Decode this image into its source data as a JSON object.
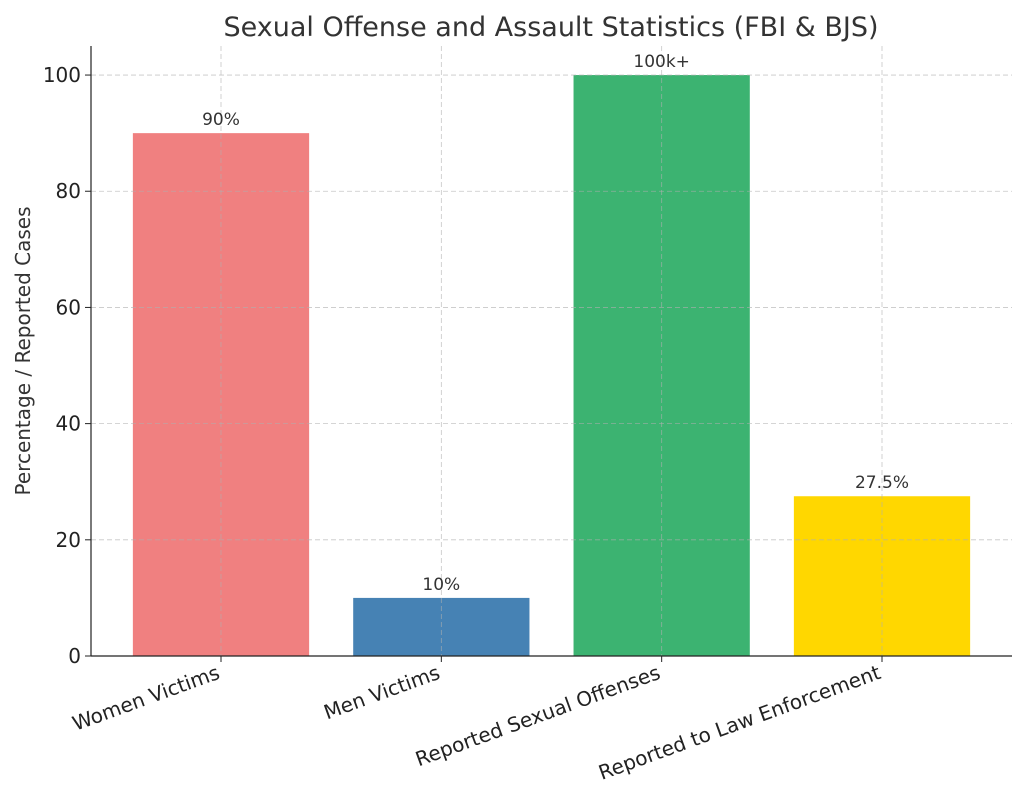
{
  "chart_data": {
    "type": "bar",
    "title": "Sexual Offense and Assault Statistics (FBI & BJS)",
    "xlabel": "",
    "ylabel": "Percentage / Reported Cases",
    "categories": [
      "Women Victims",
      "Men Victims",
      "Reported Sexual Offenses",
      "Reported to Law Enforcement"
    ],
    "values": [
      90,
      10,
      100,
      27.5
    ],
    "data_labels": [
      "90%",
      "10%",
      "100k+",
      "27.5%"
    ],
    "colors": [
      "#F08080",
      "#4682B4",
      "#3CB371",
      "#FFD700"
    ],
    "ylim": [
      0,
      105
    ],
    "yticks": [
      0,
      20,
      40,
      60,
      80,
      100
    ],
    "grid": true,
    "xtick_rotation": 20
  }
}
